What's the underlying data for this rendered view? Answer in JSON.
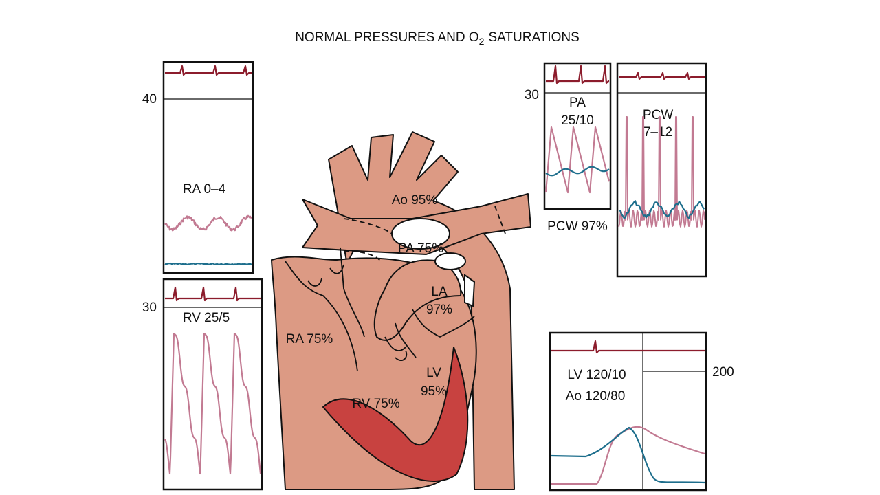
{
  "title": {
    "text": "NORMAL PRESSURES AND O",
    "subscript": "2",
    "suffix": "SATURATIONS"
  },
  "panels": {
    "ra": {
      "scale": "40",
      "label": "RA 0–4"
    },
    "rv": {
      "scale": "30",
      "label": "RV 25/5"
    },
    "pa": {
      "scale": "30",
      "label": [
        "PA",
        "25/10"
      ]
    },
    "pcw": {
      "label": [
        "PCW",
        "7–12"
      ],
      "saturation": "PCW 97%"
    },
    "lv": {
      "scale": "200",
      "label": [
        "LV 120/10",
        "Ao 120/80"
      ]
    }
  },
  "heart": {
    "labels": [
      "Ao 95%",
      "PA 75%",
      "LA",
      "97%",
      "RA 75%",
      "RV 75%",
      "LV",
      "95%"
    ]
  }
}
